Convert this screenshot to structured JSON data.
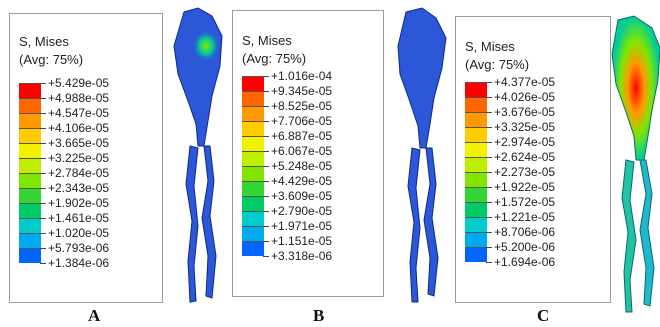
{
  "colors": {
    "contour": [
      "#ff0000",
      "#ff6600",
      "#ff9900",
      "#ffcc00",
      "#f2f200",
      "#bfee00",
      "#80e600",
      "#33d633",
      "#00cc66",
      "#00cccc",
      "#00aaee",
      "#0066ff",
      "#0000ff"
    ],
    "model_base": "#2b57d8",
    "model_edge": "#0d2a8a"
  },
  "panels": [
    {
      "label": "A",
      "legend": {
        "title": "S, Mises",
        "avg": "(Avg: 75%)",
        "values": [
          "+5.429e-05",
          "+4.988e-05",
          "+4.547e-05",
          "+4.106e-05",
          "+3.665e-05",
          "+3.225e-05",
          "+2.784e-05",
          "+2.343e-05",
          "+1.902e-05",
          "+1.461e-05",
          "+1.020e-05",
          "+5.793e-06",
          "+1.384e-06"
        ]
      }
    },
    {
      "label": "B",
      "legend": {
        "title": "S, Mises",
        "avg": "(Avg: 75%)",
        "values": [
          "+1.016e-04",
          "+9.345e-05",
          "+8.525e-05",
          "+7.706e-05",
          "+6.887e-05",
          "+6.067e-05",
          "+5.248e-05",
          "+4.429e-05",
          "+3.609e-05",
          "+2.790e-05",
          "+1.971e-05",
          "+1.151e-05",
          "+3.318e-06"
        ]
      }
    },
    {
      "label": "C",
      "legend": {
        "title": "S, Mises",
        "avg": "(Avg: 75%)",
        "values": [
          "+4.377e-05",
          "+4.026e-05",
          "+3.676e-05",
          "+3.325e-05",
          "+2.974e-05",
          "+2.624e-05",
          "+2.273e-05",
          "+1.922e-05",
          "+1.572e-05",
          "+1.221e-05",
          "+8.706e-06",
          "+5.200e-06",
          "+1.694e-06"
        ]
      }
    }
  ]
}
